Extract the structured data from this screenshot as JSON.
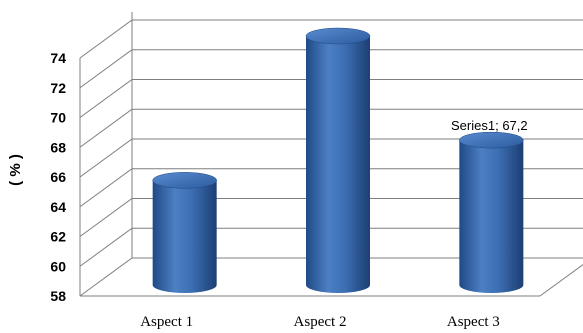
{
  "chart_data": {
    "type": "bar",
    "categories": [
      "Aspect 1",
      "Aspect 2",
      "Aspect 3"
    ],
    "series": [
      {
        "values": [
          64.5,
          74.2,
          67.2
        ]
      }
    ],
    "ylabel": "( % )",
    "ylim": [
      58,
      74
    ],
    "yticks": [
      58,
      60,
      62,
      64,
      66,
      68,
      70,
      72,
      74
    ],
    "grid": true,
    "legend": "none",
    "data_labels": [
      {
        "category_index": 2,
        "text": "Series1; 67,2"
      }
    ],
    "colors": {
      "bar": "#2e5fa3",
      "grid": "#7f7f7f"
    }
  }
}
